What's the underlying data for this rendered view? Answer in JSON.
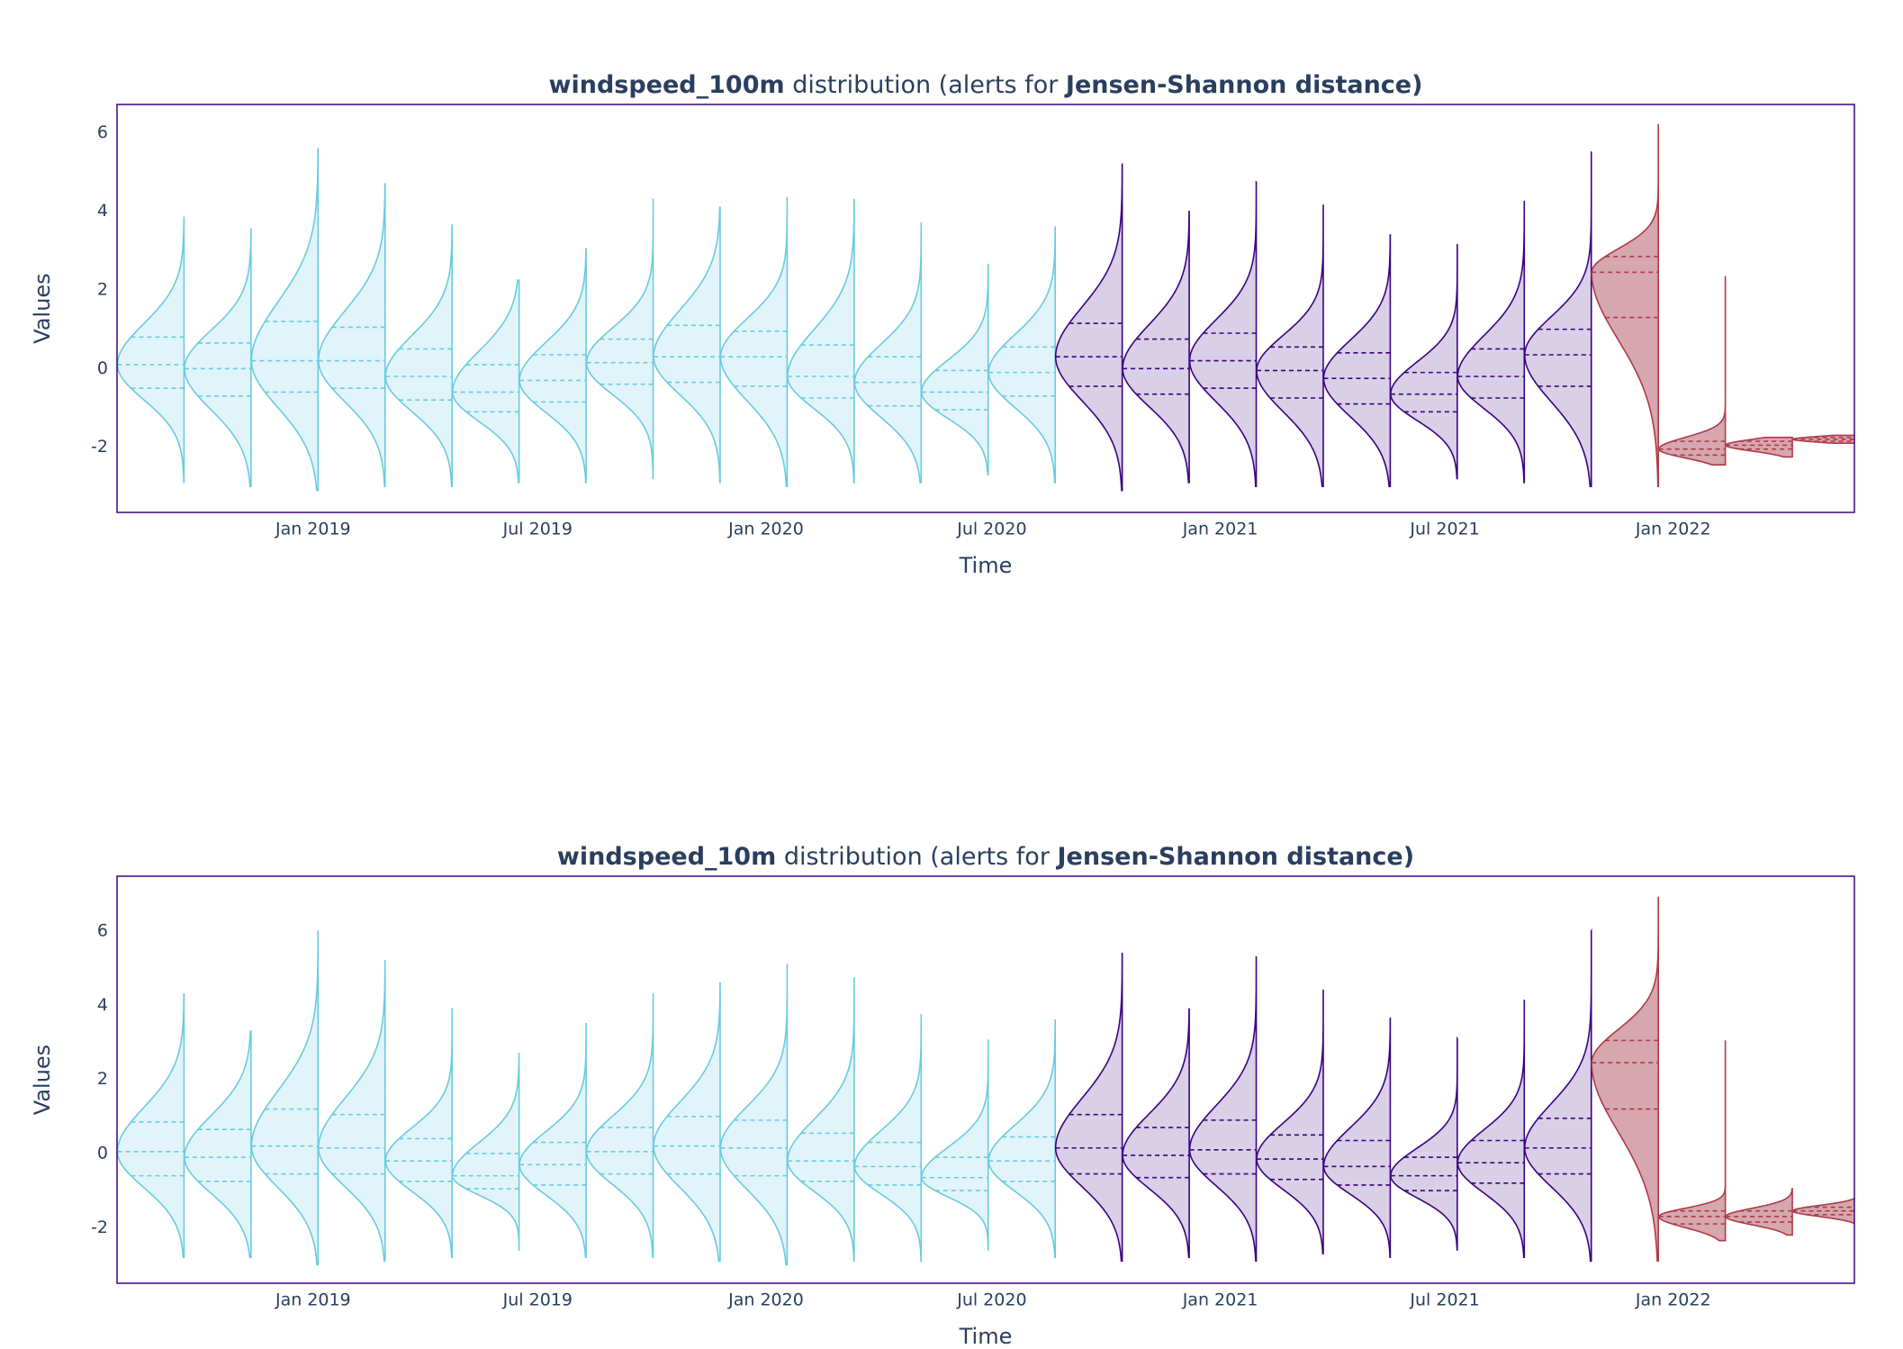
{
  "chart_data": [
    {
      "type": "violin",
      "title": [
        {
          "text": "windspeed_100m",
          "bold": true
        },
        {
          "text": " distribution (alerts for ",
          "bold": false
        },
        {
          "text": "Jensen-Shannon distance)",
          "bold": true
        }
      ],
      "xlabel": "Time",
      "ylabel": "Values",
      "grid": false,
      "xlim": [
        "2018-07-27",
        "2022-05-27"
      ],
      "xticks": [
        {
          "value": "2019-01-01",
          "label": "Jan 2019"
        },
        {
          "value": "2019-07-01",
          "label": "Jul 2019"
        },
        {
          "value": "2020-01-01",
          "label": "Jan 2020"
        },
        {
          "value": "2020-07-01",
          "label": "Jul 2020"
        },
        {
          "value": "2021-01-01",
          "label": "Jan 2021"
        },
        {
          "value": "2021-07-01",
          "label": "Jul 2021"
        },
        {
          "value": "2022-01-01",
          "label": "Jan 2022"
        }
      ],
      "ylim": [
        -3.66,
        6.72
      ],
      "yticks": [
        -2,
        0,
        2,
        4,
        6
      ],
      "x": [
        "2018-09-19",
        "2018-11-12",
        "2019-01-05",
        "2019-02-28",
        "2019-04-23",
        "2019-06-16",
        "2019-08-09",
        "2019-10-02",
        "2019-11-25",
        "2020-01-18",
        "2020-03-12",
        "2020-05-05",
        "2020-06-28",
        "2020-08-21",
        "2020-10-14",
        "2020-12-07",
        "2021-01-30",
        "2021-03-25",
        "2021-05-18",
        "2021-07-11",
        "2021-09-03",
        "2021-10-27",
        "2021-12-20",
        "2022-02-12",
        "2022-04-07",
        "2022-05-31"
      ],
      "min": [
        -2.9,
        -3.0,
        -3.1,
        -3.0,
        -3.0,
        -2.9,
        -2.9,
        -2.8,
        -2.9,
        -3.0,
        -2.9,
        -2.9,
        -2.7,
        -2.9,
        -3.1,
        -2.9,
        -3.0,
        -3.0,
        -3.0,
        -2.8,
        -2.9,
        -3.0,
        -3.0,
        -2.45,
        -2.25,
        -1.9
      ],
      "q1": [
        -0.5,
        -0.7,
        -0.6,
        -0.5,
        -0.8,
        -1.1,
        -0.85,
        -0.4,
        -0.35,
        -0.45,
        -0.75,
        -0.95,
        -1.05,
        -0.7,
        -0.45,
        -0.65,
        -0.5,
        -0.75,
        -0.9,
        -1.1,
        -0.75,
        -0.45,
        1.3,
        -2.2,
        -2.05,
        -1.85
      ],
      "median": [
        0.1,
        0.0,
        0.2,
        0.2,
        -0.2,
        -0.6,
        -0.3,
        0.15,
        0.3,
        0.3,
        -0.2,
        -0.35,
        -0.6,
        -0.1,
        0.3,
        0.0,
        0.2,
        -0.05,
        -0.25,
        -0.65,
        -0.2,
        0.35,
        2.45,
        -2.05,
        -1.95,
        -1.8
      ],
      "q3": [
        0.8,
        0.65,
        1.2,
        1.05,
        0.5,
        0.1,
        0.35,
        0.75,
        1.1,
        0.95,
        0.6,
        0.3,
        -0.05,
        0.55,
        1.15,
        0.75,
        0.9,
        0.55,
        0.4,
        -0.1,
        0.5,
        1.0,
        2.85,
        -1.85,
        -1.85,
        -1.75
      ],
      "max": [
        3.85,
        3.55,
        5.6,
        4.7,
        3.65,
        2.25,
        3.05,
        4.3,
        4.1,
        4.35,
        4.3,
        3.7,
        2.65,
        3.6,
        5.2,
        4.0,
        4.75,
        4.15,
        3.4,
        3.15,
        4.25,
        5.5,
        6.2,
        2.35,
        -1.75,
        -1.7
      ],
      "colors": [
        "#6acbe0",
        "#6acbe0",
        "#6acbe0",
        "#6acbe0",
        "#6acbe0",
        "#6acbe0",
        "#6acbe0",
        "#6acbe0",
        "#6acbe0",
        "#6acbe0",
        "#6acbe0",
        "#6acbe0",
        "#6acbe0",
        "#6acbe0",
        "#3b0280",
        "#3b0280",
        "#3b0280",
        "#3b0280",
        "#3b0280",
        "#3b0280",
        "#3b0280",
        "#3b0280",
        "#b03a48",
        "#b03a48",
        "#b03a48",
        "#b03a48"
      ],
      "fill_colors": [
        "#e1f4f9",
        "#e1f4f9",
        "#e1f4f9",
        "#e1f4f9",
        "#e1f4f9",
        "#e1f4f9",
        "#e1f4f9",
        "#e1f4f9",
        "#e1f4f9",
        "#e1f4f9",
        "#e1f4f9",
        "#e1f4f9",
        "#e1f4f9",
        "#e1f4f9",
        "#d9cfe6",
        "#d9cfe6",
        "#d9cfe6",
        "#d9cfe6",
        "#d9cfe6",
        "#d9cfe6",
        "#d9cfe6",
        "#d9cfe6",
        "#d6a7ae",
        "#d6a7ae",
        "#d6a7ae",
        "#d6a7ae"
      ]
    },
    {
      "type": "violin",
      "title": [
        {
          "text": "windspeed_10m",
          "bold": true
        },
        {
          "text": " distribution (alerts for ",
          "bold": false
        },
        {
          "text": "Jensen-Shannon distance)",
          "bold": true
        }
      ],
      "xlabel": "Time",
      "ylabel": "Values",
      "grid": false,
      "xlim": [
        "2018-07-27",
        "2022-05-27"
      ],
      "xticks": [
        {
          "value": "2019-01-01",
          "label": "Jan 2019"
        },
        {
          "value": "2019-07-01",
          "label": "Jul 2019"
        },
        {
          "value": "2020-01-01",
          "label": "Jan 2020"
        },
        {
          "value": "2020-07-01",
          "label": "Jul 2020"
        },
        {
          "value": "2021-01-01",
          "label": "Jan 2021"
        },
        {
          "value": "2021-07-01",
          "label": "Jul 2021"
        },
        {
          "value": "2022-01-01",
          "label": "Jan 2022"
        }
      ],
      "ylim": [
        -3.5,
        7.48
      ],
      "yticks": [
        -2,
        0,
        2,
        4,
        6
      ],
      "x": [
        "2018-09-19",
        "2018-11-12",
        "2019-01-05",
        "2019-02-28",
        "2019-04-23",
        "2019-06-16",
        "2019-08-09",
        "2019-10-02",
        "2019-11-25",
        "2020-01-18",
        "2020-03-12",
        "2020-05-05",
        "2020-06-28",
        "2020-08-21",
        "2020-10-14",
        "2020-12-07",
        "2021-01-30",
        "2021-03-25",
        "2021-05-18",
        "2021-07-11",
        "2021-09-03",
        "2021-10-27",
        "2021-12-20",
        "2022-02-12",
        "2022-04-07",
        "2022-05-31"
      ],
      "min": [
        -2.8,
        -2.8,
        -3.0,
        -2.9,
        -2.8,
        -2.6,
        -2.8,
        -2.8,
        -2.9,
        -3.0,
        -2.9,
        -2.9,
        -2.6,
        -2.8,
        -2.9,
        -2.8,
        -2.9,
        -2.7,
        -2.8,
        -2.6,
        -2.8,
        -2.9,
        -2.9,
        -2.35,
        -2.2,
        -2.1
      ],
      "q1": [
        -0.6,
        -0.75,
        -0.55,
        -0.55,
        -0.75,
        -0.95,
        -0.85,
        -0.55,
        -0.55,
        -0.6,
        -0.75,
        -0.85,
        -1.0,
        -0.75,
        -0.55,
        -0.65,
        -0.55,
        -0.7,
        -0.85,
        -1.0,
        -0.8,
        -0.55,
        1.2,
        -1.9,
        -1.85,
        -1.65
      ],
      "median": [
        0.05,
        -0.1,
        0.2,
        0.15,
        -0.2,
        -0.6,
        -0.3,
        0.05,
        0.2,
        0.15,
        -0.2,
        -0.35,
        -0.65,
        -0.2,
        0.15,
        -0.05,
        0.1,
        -0.15,
        -0.35,
        -0.6,
        -0.25,
        0.15,
        2.45,
        -1.7,
        -1.7,
        -1.55
      ],
      "q3": [
        0.85,
        0.65,
        1.2,
        1.05,
        0.4,
        0.0,
        0.3,
        0.7,
        1.0,
        0.9,
        0.55,
        0.3,
        -0.1,
        0.45,
        1.05,
        0.7,
        0.9,
        0.5,
        0.35,
        -0.1,
        0.35,
        0.95,
        3.05,
        -1.55,
        -1.55,
        -1.45
      ],
      "max": [
        4.3,
        3.3,
        6.0,
        5.2,
        3.9,
        2.7,
        3.5,
        4.3,
        4.6,
        5.1,
        4.75,
        3.75,
        3.05,
        3.6,
        5.4,
        3.9,
        5.3,
        4.4,
        3.65,
        3.1,
        4.15,
        6.0,
        6.9,
        3.05,
        -0.95,
        -1.0
      ],
      "colors": [
        "#6acbe0",
        "#6acbe0",
        "#6acbe0",
        "#6acbe0",
        "#6acbe0",
        "#6acbe0",
        "#6acbe0",
        "#6acbe0",
        "#6acbe0",
        "#6acbe0",
        "#6acbe0",
        "#6acbe0",
        "#6acbe0",
        "#6acbe0",
        "#3b0280",
        "#3b0280",
        "#3b0280",
        "#3b0280",
        "#3b0280",
        "#3b0280",
        "#3b0280",
        "#3b0280",
        "#b03a48",
        "#b03a48",
        "#b03a48",
        "#b03a48"
      ],
      "fill_colors": [
        "#e1f4f9",
        "#e1f4f9",
        "#e1f4f9",
        "#e1f4f9",
        "#e1f4f9",
        "#e1f4f9",
        "#e1f4f9",
        "#e1f4f9",
        "#e1f4f9",
        "#e1f4f9",
        "#e1f4f9",
        "#e1f4f9",
        "#e1f4f9",
        "#e1f4f9",
        "#d9cfe6",
        "#d9cfe6",
        "#d9cfe6",
        "#d9cfe6",
        "#d9cfe6",
        "#d9cfe6",
        "#d9cfe6",
        "#d9cfe6",
        "#d6a7ae",
        "#d6a7ae",
        "#d6a7ae",
        "#d6a7ae"
      ]
    }
  ]
}
